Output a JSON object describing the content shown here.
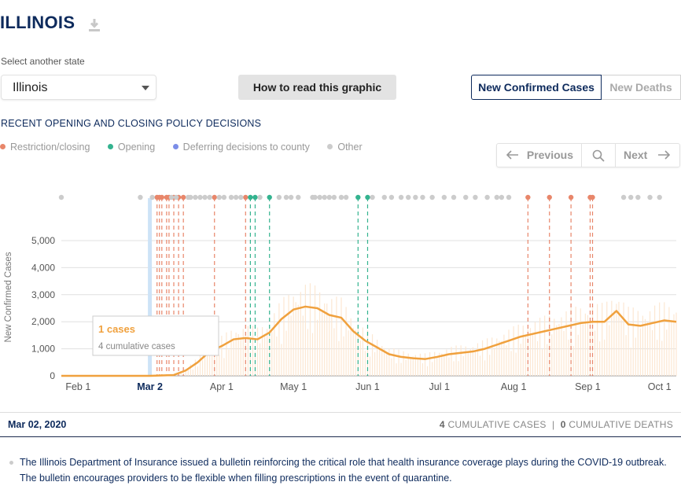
{
  "header": {
    "title": "ILLINOIS",
    "download_icon": "download-icon"
  },
  "state_select": {
    "label": "Select another state",
    "value": "Illinois"
  },
  "howto_button": "How to read this graphic",
  "metric_toggle": {
    "active": "New Confirmed Cases",
    "inactive": "New Deaths"
  },
  "policy_heading": "RECENT OPENING AND CLOSING POLICY DECISIONS",
  "legend": [
    {
      "label": "Restriction/closing",
      "color": "#e8866a"
    },
    {
      "label": "Opening",
      "color": "#34b38f"
    },
    {
      "label": "Deferring decisions to county",
      "color": "#7b8de8"
    },
    {
      "label": "Other",
      "color": "#cccccc"
    }
  ],
  "pager": {
    "prev": "Previous",
    "next": "Next",
    "search_icon": "search-icon"
  },
  "tooltip": {
    "primary": "1 cases",
    "secondary": "4 cumulative cases"
  },
  "selection": {
    "date": "Mar 02, 2020",
    "cumulative_cases": "4",
    "cases_label": "CUMULATIVE CASES",
    "cumulative_deaths": "0",
    "deaths_label": "CUMULATIVE DEATHS",
    "separator": "|"
  },
  "note": "The Illinois Department of Insurance issued a bulletin reinforcing the critical role that health insurance coverage plays during the COVID-19 outbreak. The bulletin encourages providers to be flexible when filling prescriptions in the event of quarantine.",
  "chart_data": {
    "type": "line",
    "ylabel": "New Confirmed Cases",
    "ylim": [
      0,
      5000
    ],
    "yticks": [
      0,
      1000,
      2000,
      3000,
      4000,
      5000
    ],
    "ytick_labels": [
      "0",
      "1,000",
      "2,000",
      "3,000",
      "4,000",
      "5,000"
    ],
    "xticks": [
      "Feb 1",
      "Mar 2",
      "Apr 1",
      "May 1",
      "Jun 1",
      "Jul 1",
      "Aug 1",
      "Sep 1",
      "Oct 1"
    ],
    "xtick_days": [
      0,
      30,
      60,
      90,
      121,
      151,
      182,
      213,
      243
    ],
    "selected_tick": "Mar 2",
    "selected_day": 30,
    "x_range_days": [
      -7,
      250
    ],
    "series": [
      {
        "color": "#f0a13e",
        "x": [
          -7,
          30,
          40,
          45,
          50,
          55,
          60,
          65,
          70,
          75,
          80,
          85,
          90,
          95,
          100,
          105,
          110,
          115,
          120,
          125,
          130,
          135,
          140,
          145,
          150,
          155,
          160,
          165,
          170,
          175,
          180,
          185,
          190,
          195,
          200,
          205,
          210,
          215,
          220,
          225,
          230,
          235,
          240,
          245,
          250
        ],
        "y": [
          0,
          0,
          30,
          200,
          500,
          900,
          1100,
          1350,
          1400,
          1350,
          1600,
          2100,
          2450,
          2560,
          2500,
          2250,
          2150,
          1650,
          1300,
          1050,
          800,
          700,
          650,
          620,
          700,
          800,
          850,
          900,
          1000,
          1150,
          1300,
          1450,
          1550,
          1650,
          1750,
          1850,
          1950,
          2000,
          2000,
          2400,
          1900,
          1850,
          1950,
          2050,
          2000
        ]
      }
    ],
    "bars_color": "#fce7d2",
    "policy_events": [
      {
        "day": 33,
        "type": "closing"
      },
      {
        "day": 34,
        "type": "closing"
      },
      {
        "day": 35,
        "type": "closing"
      },
      {
        "day": 37,
        "type": "closing"
      },
      {
        "day": 38,
        "type": "closing"
      },
      {
        "day": 40,
        "type": "closing"
      },
      {
        "day": 42,
        "type": "closing"
      },
      {
        "day": 44,
        "type": "closing"
      },
      {
        "day": 57,
        "type": "closing"
      },
      {
        "day": 70,
        "type": "closing"
      },
      {
        "day": 72,
        "type": "opening"
      },
      {
        "day": 74,
        "type": "opening"
      },
      {
        "day": 80,
        "type": "opening"
      },
      {
        "day": 117,
        "type": "opening"
      },
      {
        "day": 121,
        "type": "opening"
      },
      {
        "day": 188,
        "type": "closing"
      },
      {
        "day": 197,
        "type": "closing"
      },
      {
        "day": 206,
        "type": "closing"
      },
      {
        "day": 214,
        "type": "closing"
      },
      {
        "day": 215,
        "type": "closing"
      }
    ],
    "other_events": [
      -7,
      26,
      31,
      39,
      41,
      46,
      47,
      49,
      51,
      53,
      55,
      59,
      61,
      64,
      66,
      68,
      76,
      84,
      87,
      89,
      92,
      98,
      99,
      101,
      103,
      105,
      107,
      110,
      112,
      123,
      128,
      131,
      135,
      138,
      141,
      144,
      148,
      153,
      157,
      162,
      166,
      171,
      175,
      177,
      180,
      228,
      231,
      234,
      239,
      243
    ]
  }
}
